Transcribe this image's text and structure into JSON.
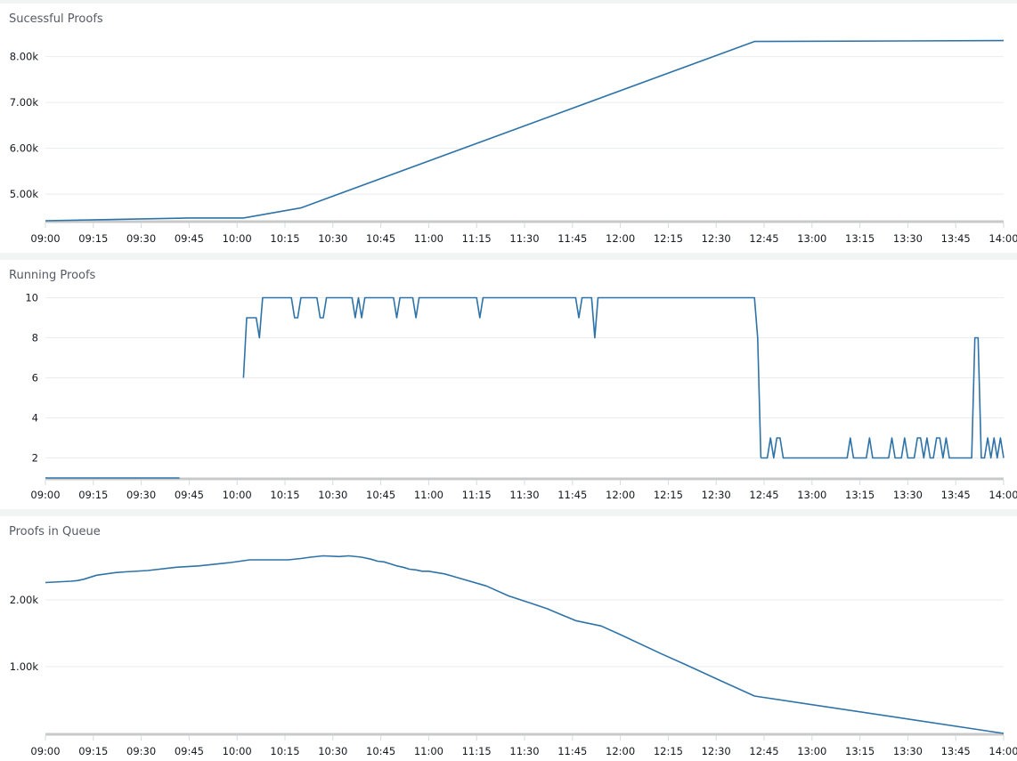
{
  "colors": {
    "series": "#2e73a8",
    "grid": "#eaeded",
    "axis": "#c8c9ca",
    "background": "#f2f3f3"
  },
  "x_ticks": [
    "09:00",
    "09:15",
    "09:30",
    "09:45",
    "10:00",
    "10:15",
    "10:30",
    "10:45",
    "11:00",
    "11:15",
    "11:30",
    "11:45",
    "12:00",
    "12:15",
    "12:30",
    "12:45",
    "13:00",
    "13:15",
    "13:30",
    "13:45",
    "14:00"
  ],
  "panels": [
    {
      "title": "Sucessful Proofs",
      "y_ticks": [
        {
          "label": "8.00k",
          "value": 8000
        },
        {
          "label": "7.00k",
          "value": 7000
        },
        {
          "label": "6.00k",
          "value": 6000
        },
        {
          "label": "5.00k",
          "value": 5000
        }
      ]
    },
    {
      "title": "Running Proofs",
      "y_ticks": [
        {
          "label": "10",
          "value": 10
        },
        {
          "label": "8",
          "value": 8
        },
        {
          "label": "6",
          "value": 6
        },
        {
          "label": "4",
          "value": 4
        },
        {
          "label": "2",
          "value": 2
        }
      ]
    },
    {
      "title": "Proofs in Queue",
      "y_ticks": [
        {
          "label": "2.00k",
          "value": 2000
        },
        {
          "label": "1.00k",
          "value": 1000
        }
      ]
    }
  ],
  "chart_data": [
    {
      "type": "line",
      "title": "Sucessful Proofs",
      "xlabel": "",
      "ylabel": "",
      "x_range": [
        "09:00",
        "14:00"
      ],
      "ylim": [
        4420,
        8700
      ],
      "grid": true,
      "legend": false,
      "x_minutes": [
        0,
        45,
        62,
        80,
        222,
        300
      ],
      "values": [
        4420,
        4480,
        4480,
        4700,
        8330,
        8350
      ]
    },
    {
      "type": "line",
      "title": "Running Proofs",
      "xlabel": "",
      "ylabel": "",
      "x_range": [
        "09:00",
        "14:00"
      ],
      "ylim": [
        1,
        10.5
      ],
      "grid": true,
      "legend": false,
      "segments": [
        {
          "x_minutes": [
            0,
            42
          ],
          "values": [
            1,
            1
          ]
        },
        {
          "x_minutes": [
            62,
            63,
            64,
            66,
            67,
            68,
            70,
            71,
            72,
            73,
            77,
            78,
            79,
            80,
            81,
            85,
            86,
            87,
            88,
            89,
            90,
            96,
            97,
            98,
            99,
            100,
            101,
            102,
            109,
            110,
            111,
            112,
            115,
            116,
            117,
            118,
            119,
            135,
            136,
            137,
            166,
            167,
            168,
            171,
            172,
            173,
            174,
            222,
            223,
            224
          ],
          "values": [
            6,
            9,
            9,
            9,
            8,
            10,
            10,
            10,
            10,
            10,
            10,
            9,
            9,
            10,
            10,
            10,
            9,
            9,
            10,
            10,
            10,
            10,
            9,
            10,
            9,
            10,
            10,
            10,
            10,
            9,
            10,
            10,
            10,
            9,
            10,
            10,
            10,
            10,
            9,
            10,
            10,
            9,
            10,
            10,
            8,
            10,
            10,
            10,
            8,
            2
          ]
        },
        {
          "x_minutes": [
            224,
            226,
            227,
            228,
            229,
            230,
            231,
            233,
            251,
            252,
            253,
            257,
            258,
            259,
            260,
            264,
            265,
            266,
            268,
            269,
            270,
            272,
            273,
            274,
            275,
            276,
            277,
            278,
            279,
            280,
            281,
            282,
            283,
            284,
            290,
            291,
            292,
            293,
            294,
            295,
            296,
            297,
            298,
            299,
            300
          ],
          "values": [
            2,
            2,
            3,
            2,
            3,
            3,
            2,
            2,
            2,
            3,
            2,
            2,
            3,
            2,
            2,
            2,
            3,
            2,
            2,
            3,
            2,
            2,
            3,
            3,
            2,
            3,
            2,
            2,
            3,
            3,
            2,
            3,
            2,
            2,
            2,
            8,
            8,
            2,
            2,
            3,
            2,
            3,
            2,
            3,
            2
          ]
        }
      ]
    },
    {
      "type": "line",
      "title": "Proofs in Queue",
      "xlabel": "",
      "ylabel": "",
      "x_range": [
        "09:00",
        "14:00"
      ],
      "ylim": [
        0,
        2700
      ],
      "grid": true,
      "legend": false,
      "x_minutes": [
        0,
        8,
        10,
        12,
        16,
        22,
        25,
        32,
        41,
        48,
        58,
        64,
        71,
        76,
        80,
        83,
        87,
        92,
        95,
        99,
        102,
        104,
        106,
        108,
        110,
        112,
        114,
        116,
        118,
        120,
        125,
        130,
        138,
        145,
        152,
        157,
        166,
        174,
        180,
        193,
        200,
        210,
        222,
        300
      ],
      "values": [
        2260,
        2280,
        2290,
        2310,
        2370,
        2410,
        2420,
        2440,
        2490,
        2510,
        2560,
        2600,
        2600,
        2600,
        2620,
        2640,
        2660,
        2650,
        2660,
        2640,
        2610,
        2580,
        2570,
        2540,
        2510,
        2490,
        2460,
        2450,
        2430,
        2430,
        2390,
        2320,
        2210,
        2060,
        1950,
        1870,
        1690,
        1610,
        1480,
        1190,
        1040,
        820,
        560,
        0
      ]
    }
  ]
}
